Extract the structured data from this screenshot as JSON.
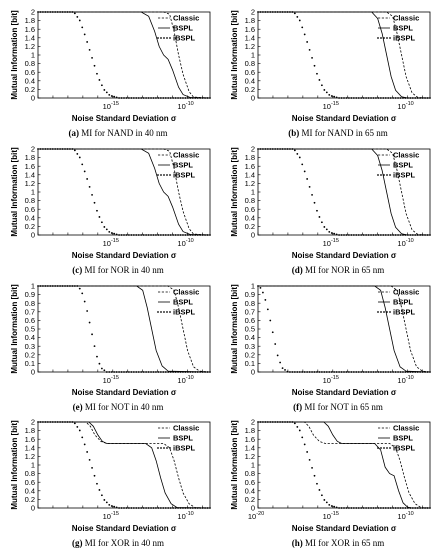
{
  "chart_data": [
    {
      "id": "a",
      "type": "line",
      "caption_letter": "(a)",
      "caption_text": " MI for NAND in 40 nm",
      "ylabel": "Mutual Information [bit]",
      "xlabel": "Noise Standard Deviation σ",
      "x_scale": "log",
      "xlim": [
        -20,
        -8.5
      ],
      "ylim": [
        0,
        2
      ],
      "yticks": [
        0,
        0.2,
        0.4,
        0.6,
        0.8,
        1,
        1.2,
        1.4,
        1.6,
        1.8,
        2
      ],
      "xtick_exponents": [
        -15,
        -10
      ],
      "xtick_base": "10",
      "legend_position": "top-right",
      "series": [
        {
          "name": "Classic",
          "style": "dashed",
          "x": [
            -20,
            -11.6,
            -11.2,
            -10.9,
            -10.6,
            -10.3,
            -9.9,
            -9.6,
            -8.5
          ],
          "y": [
            2,
            2,
            1.95,
            1.55,
            1.0,
            0.55,
            0.15,
            0.02,
            0
          ]
        },
        {
          "name": "BSPL",
          "style": "solid",
          "x": [
            -20,
            -13.1,
            -12.6,
            -12.2,
            -11.9,
            -11.6,
            -11.3,
            -11.0,
            -10.6,
            -10.3,
            -9.8,
            -8.5
          ],
          "y": [
            2,
            2,
            1.9,
            1.55,
            1.2,
            1.0,
            0.9,
            0.65,
            0.25,
            0.08,
            0.01,
            0
          ]
        },
        {
          "name": "iBSPL",
          "style": "dotted",
          "x": [
            -20,
            -17.6,
            -17.2,
            -16.8,
            -16.4,
            -16.0,
            -15.6,
            -15.2,
            -14.6,
            -8.5
          ],
          "y": [
            2,
            2,
            1.8,
            1.4,
            0.95,
            0.5,
            0.2,
            0.06,
            0,
            0
          ]
        }
      ]
    },
    {
      "id": "b",
      "type": "line",
      "caption_letter": "(b)",
      "caption_text": " MI for NAND in 65 nm",
      "ylabel": "Mutual Information [bit]",
      "xlabel": "Noise Standard Deviation σ",
      "x_scale": "log",
      "xlim": [
        -20,
        -8.5
      ],
      "ylim": [
        0,
        2
      ],
      "yticks": [
        0,
        0.2,
        0.4,
        0.6,
        0.8,
        1,
        1.2,
        1.4,
        1.6,
        1.8,
        2
      ],
      "xtick_exponents": [
        -15,
        -10
      ],
      "xtick_base": "10",
      "legend_position": "top-right",
      "series": [
        {
          "name": "Classic",
          "style": "dashed",
          "x": [
            -20,
            -11.4,
            -11.0,
            -10.7,
            -10.4,
            -10.1,
            -9.7,
            -9.3,
            -8.5
          ],
          "y": [
            2,
            2,
            1.9,
            1.5,
            1.0,
            0.5,
            0.12,
            0.01,
            0
          ]
        },
        {
          "name": "BSPL",
          "style": "solid",
          "x": [
            -20,
            -12.4,
            -12.0,
            -11.7,
            -11.4,
            -11.1,
            -10.8,
            -10.4,
            -10.0,
            -8.5
          ],
          "y": [
            2,
            2,
            1.85,
            1.5,
            1.0,
            0.5,
            0.18,
            0.03,
            0,
            0
          ]
        },
        {
          "name": "iBSPL",
          "style": "dotted",
          "x": [
            -20,
            -17.6,
            -17.2,
            -16.8,
            -16.4,
            -16.0,
            -15.6,
            -15.2,
            -14.6,
            -8.5
          ],
          "y": [
            2,
            2,
            1.8,
            1.4,
            0.95,
            0.5,
            0.2,
            0.06,
            0,
            0
          ]
        }
      ]
    },
    {
      "id": "c",
      "type": "line",
      "caption_letter": "(c)",
      "caption_text": " MI for NOR in 40 nm",
      "ylabel": "Mutual Information [bit]",
      "xlabel": "Noise Standard Deviation σ",
      "x_scale": "log",
      "xlim": [
        -20,
        -8.5
      ],
      "ylim": [
        0,
        2
      ],
      "yticks": [
        0,
        0.2,
        0.4,
        0.6,
        0.8,
        1,
        1.2,
        1.4,
        1.6,
        1.8,
        2
      ],
      "xtick_exponents": [
        -15,
        -10
      ],
      "xtick_base": "10",
      "legend_position": "top-right",
      "series": [
        {
          "name": "Classic",
          "style": "dashed",
          "x": [
            -20,
            -11.6,
            -11.2,
            -10.9,
            -10.6,
            -10.3,
            -9.9,
            -9.6,
            -8.5
          ],
          "y": [
            2,
            2,
            1.95,
            1.55,
            1.0,
            0.55,
            0.15,
            0.02,
            0
          ]
        },
        {
          "name": "BSPL",
          "style": "solid",
          "x": [
            -20,
            -13.1,
            -12.6,
            -12.2,
            -11.9,
            -11.6,
            -11.3,
            -11.0,
            -10.6,
            -10.3,
            -9.8,
            -8.5
          ],
          "y": [
            2,
            2,
            1.9,
            1.55,
            1.2,
            1.0,
            0.9,
            0.65,
            0.25,
            0.08,
            0.01,
            0
          ]
        },
        {
          "name": "iBSPL",
          "style": "dotted",
          "x": [
            -20,
            -17.6,
            -17.2,
            -16.8,
            -16.4,
            -16.0,
            -15.6,
            -15.2,
            -14.6,
            -8.5
          ],
          "y": [
            2,
            2,
            1.8,
            1.4,
            0.95,
            0.5,
            0.2,
            0.06,
            0,
            0
          ]
        }
      ]
    },
    {
      "id": "d",
      "type": "line",
      "caption_letter": "(d)",
      "caption_text": " MI for NOR in 65 nm",
      "ylabel": "Mutual Information [bit]",
      "xlabel": "Noise Standard Deviation σ",
      "x_scale": "log",
      "xlim": [
        -20,
        -8.5
      ],
      "ylim": [
        0,
        2
      ],
      "yticks": [
        0,
        0.2,
        0.4,
        0.6,
        0.8,
        1,
        1.2,
        1.4,
        1.6,
        1.8,
        2
      ],
      "xtick_exponents": [
        -15,
        -10
      ],
      "xtick_base": "10",
      "legend_position": "top-right",
      "series": [
        {
          "name": "Classic",
          "style": "dashed",
          "x": [
            -20,
            -11.4,
            -11.0,
            -10.7,
            -10.4,
            -10.1,
            -9.7,
            -9.3,
            -8.5
          ],
          "y": [
            2,
            2,
            1.9,
            1.5,
            1.0,
            0.5,
            0.12,
            0.01,
            0
          ]
        },
        {
          "name": "BSPL",
          "style": "solid",
          "x": [
            -20,
            -12.4,
            -12.0,
            -11.7,
            -11.4,
            -11.1,
            -10.8,
            -10.4,
            -10.0,
            -8.5
          ],
          "y": [
            2,
            2,
            1.85,
            1.5,
            1.0,
            0.5,
            0.18,
            0.03,
            0,
            0
          ]
        },
        {
          "name": "iBSPL",
          "style": "dotted",
          "x": [
            -20,
            -17.6,
            -17.2,
            -16.8,
            -16.4,
            -16.0,
            -15.6,
            -15.2,
            -14.6,
            -8.5
          ],
          "y": [
            2,
            2,
            1.8,
            1.4,
            0.95,
            0.5,
            0.2,
            0.06,
            0,
            0
          ]
        }
      ]
    },
    {
      "id": "e",
      "type": "line",
      "caption_letter": "(e)",
      "caption_text": " MI for NOT in 40 nm",
      "ylabel": "Mutual Information [bit]",
      "xlabel": "Noise Standard Deviation σ",
      "x_scale": "log",
      "xlim": [
        -20,
        -8.5
      ],
      "ylim": [
        0,
        1
      ],
      "yticks": [
        0,
        0.1,
        0.2,
        0.3,
        0.4,
        0.5,
        0.6,
        0.7,
        0.8,
        0.9,
        1
      ],
      "xtick_exponents": [
        -15,
        -10
      ],
      "xtick_base": "10",
      "legend_position": "top-right",
      "series": [
        {
          "name": "Classic",
          "style": "dashed",
          "x": [
            -20,
            -11.3,
            -10.9,
            -10.6,
            -10.3,
            -10.0,
            -9.6,
            -9.2,
            -8.5
          ],
          "y": [
            1,
            1,
            0.95,
            0.75,
            0.5,
            0.25,
            0.06,
            0.01,
            0
          ]
        },
        {
          "name": "BSPL",
          "style": "solid",
          "x": [
            -20,
            -13.4,
            -13.0,
            -12.7,
            -12.4,
            -12.1,
            -11.7,
            -11.3,
            -8.5
          ],
          "y": [
            1,
            1,
            0.95,
            0.75,
            0.5,
            0.25,
            0.07,
            0.01,
            0
          ]
        },
        {
          "name": "iBSPL",
          "style": "dotted",
          "x": [
            -20,
            -17.3,
            -17.0,
            -16.7,
            -16.4,
            -16.1,
            -15.8,
            -15.4,
            -8.5
          ],
          "y": [
            1,
            1,
            0.9,
            0.7,
            0.45,
            0.2,
            0.05,
            0,
            0
          ]
        }
      ]
    },
    {
      "id": "f",
      "type": "line",
      "caption_letter": "(f)",
      "caption_text": " MI for NOT in 65 nm",
      "ylabel": "Mutual Information [bit]",
      "xlabel": "Noise Standard Deviation σ",
      "x_scale": "log",
      "xlim": [
        -20,
        -8.5
      ],
      "ylim": [
        0,
        1
      ],
      "yticks": [
        0,
        0.1,
        0.2,
        0.3,
        0.4,
        0.5,
        0.6,
        0.7,
        0.8,
        0.9,
        1
      ],
      "xtick_exponents": [
        -15,
        -10
      ],
      "xtick_base": "10",
      "legend_position": "top-right",
      "series": [
        {
          "name": "Classic",
          "style": "dashed",
          "x": [
            -20,
            -11.1,
            -10.7,
            -10.4,
            -10.1,
            -9.8,
            -9.4,
            -9.0,
            -8.5
          ],
          "y": [
            1,
            1,
            0.95,
            0.75,
            0.5,
            0.25,
            0.06,
            0.01,
            0
          ]
        },
        {
          "name": "BSPL",
          "style": "solid",
          "x": [
            -20,
            -12.2,
            -11.8,
            -11.5,
            -11.2,
            -10.9,
            -10.5,
            -10.1,
            -8.5
          ],
          "y": [
            1,
            1,
            0.95,
            0.75,
            0.5,
            0.25,
            0.06,
            0.01,
            0
          ]
        },
        {
          "name": "iBSPL",
          "style": "dotted",
          "x": [
            -20,
            -19.9,
            -19.6,
            -19.3,
            -19.0,
            -18.7,
            -18.4,
            -18.0,
            -8.5
          ],
          "y": [
            1,
            1,
            0.9,
            0.7,
            0.45,
            0.2,
            0.05,
            0,
            0
          ]
        }
      ]
    },
    {
      "id": "g",
      "type": "line",
      "caption_letter": "(g)",
      "caption_text": " MI for XOR in 40 nm",
      "ylabel": "Mutual Information [bit]",
      "xlabel": "Noise Standard Deviation σ",
      "x_scale": "log",
      "xlim": [
        -20,
        -8.5
      ],
      "ylim": [
        0,
        2
      ],
      "yticks": [
        0,
        0.2,
        0.4,
        0.6,
        0.8,
        1,
        1.2,
        1.4,
        1.6,
        1.8,
        2
      ],
      "xtick_exponents": [
        -15,
        -10
      ],
      "xtick_base": "10",
      "legend_position": "top-right",
      "series": [
        {
          "name": "Classic",
          "style": "dashed",
          "x": [
            -20,
            -16.8,
            -16.5,
            -16.2,
            -15.8,
            -15.4,
            -11.6,
            -11.2,
            -10.9,
            -10.6,
            -10.3,
            -9.9,
            -9.5,
            -8.5
          ],
          "y": [
            2,
            2,
            1.9,
            1.7,
            1.55,
            1.5,
            1.5,
            1.4,
            1.1,
            0.7,
            0.35,
            0.1,
            0.01,
            0
          ]
        },
        {
          "name": "BSPL",
          "style": "solid",
          "x": [
            -20,
            -16.6,
            -16.3,
            -16.0,
            -15.7,
            -15.4,
            -12.8,
            -12.4,
            -12.1,
            -11.8,
            -11.5,
            -11.1,
            -10.7,
            -8.5
          ],
          "y": [
            2,
            2,
            1.9,
            1.7,
            1.55,
            1.5,
            1.5,
            1.4,
            1.1,
            0.7,
            0.35,
            0.1,
            0.01,
            0
          ]
        },
        {
          "name": "iBSPL",
          "style": "dotted",
          "x": [
            -20,
            -17.6,
            -17.2,
            -16.8,
            -16.4,
            -16.0,
            -15.6,
            -15.2,
            -14.6,
            -8.5
          ],
          "y": [
            2,
            2,
            1.8,
            1.4,
            0.95,
            0.5,
            0.2,
            0.06,
            0,
            0
          ]
        }
      ]
    },
    {
      "id": "h",
      "type": "line",
      "caption_letter": "(h)",
      "caption_text": " MI for XOR in 65 nm",
      "ylabel": "Mutual Information [bit]",
      "xlabel": "Noise Standard Deviation σ",
      "x_scale": "log",
      "xlim": [
        -20,
        -8.5
      ],
      "ylim": [
        0,
        2
      ],
      "yticks": [
        0,
        0.2,
        0.4,
        0.6,
        0.8,
        1,
        1.2,
        1.4,
        1.6,
        1.8,
        2
      ],
      "xtick_exponents": [
        -20,
        -15,
        -10
      ],
      "xtick_base": "10",
      "legend_position": "top-right",
      "series": [
        {
          "name": "Classic",
          "style": "dashed",
          "x": [
            -20,
            -16.9,
            -16.6,
            -16.3,
            -15.9,
            -15.5,
            -11.2,
            -10.8,
            -10.5,
            -10.2,
            -9.9,
            -9.5,
            -9.1,
            -8.5
          ],
          "y": [
            2,
            2,
            1.9,
            1.7,
            1.55,
            1.5,
            1.5,
            1.4,
            1.1,
            0.7,
            0.35,
            0.1,
            0.01,
            0
          ]
        },
        {
          "name": "BSPL",
          "style": "solid",
          "x": [
            -20,
            -15.6,
            -15.3,
            -15.0,
            -14.7,
            -14.4,
            -12.2,
            -11.8,
            -11.5,
            -11.2,
            -10.9,
            -10.6,
            -10.3,
            -10.0,
            -9.7,
            -8.5
          ],
          "y": [
            2,
            2,
            1.9,
            1.7,
            1.55,
            1.5,
            1.5,
            1.35,
            0.95,
            0.8,
            0.75,
            0.4,
            0.12,
            0.02,
            0,
            0
          ]
        },
        {
          "name": "iBSPL",
          "style": "dotted",
          "x": [
            -20,
            -17.6,
            -17.2,
            -16.8,
            -16.4,
            -16.0,
            -15.6,
            -15.2,
            -14.6,
            -8.5
          ],
          "y": [
            2,
            2,
            1.8,
            1.4,
            0.95,
            0.5,
            0.2,
            0.06,
            0,
            0
          ]
        }
      ]
    }
  ]
}
